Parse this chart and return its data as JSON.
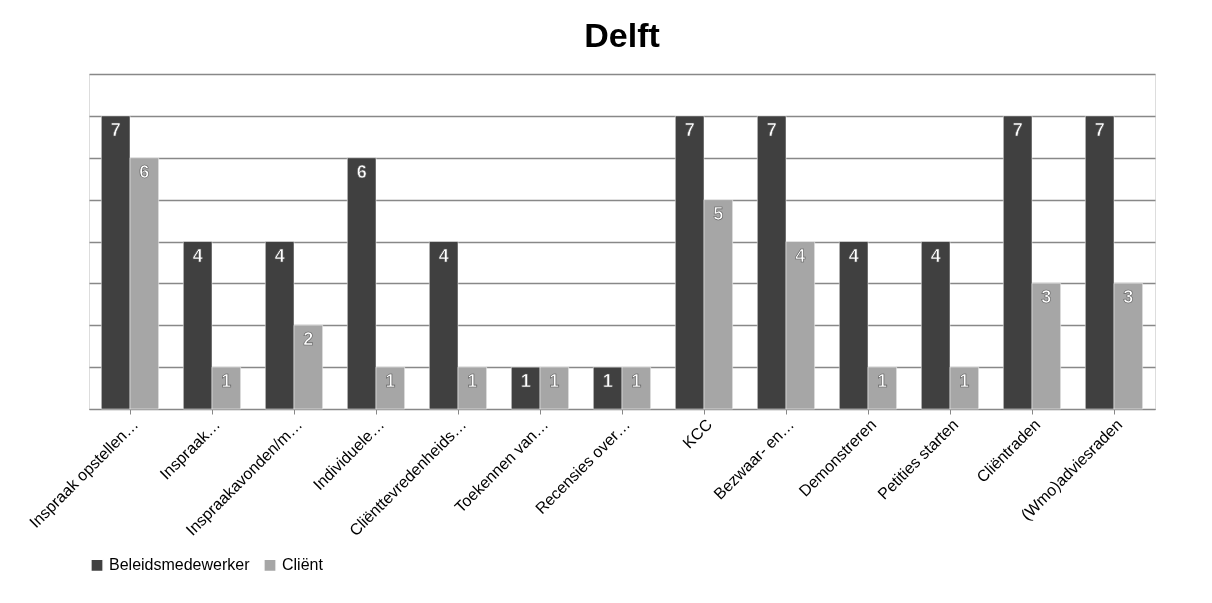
{
  "chart_data": {
    "type": "bar",
    "title": "Delft",
    "categories": [
      "Inspraak opstellen…",
      "Inspraak…",
      "Inspraakavonden/m…",
      "Individuele…",
      "Cliënttevredenheids…",
      "Toekennen van…",
      "Recensies over…",
      "KCC",
      "Bezwaar- en…",
      "Demonstreren",
      "Petities starten",
      "Cliëntraden",
      "(Wmo)adviesraden"
    ],
    "series": [
      {
        "name": "Beleidsmedewerker",
        "color": "#404040",
        "values": [
          7,
          4,
          4,
          6,
          4,
          1,
          1,
          7,
          7,
          4,
          4,
          7,
          7
        ]
      },
      {
        "name": "Cliënt",
        "color": "#a6a6a6",
        "values": [
          6,
          1,
          2,
          1,
          1,
          1,
          1,
          5,
          4,
          1,
          1,
          3,
          3
        ]
      }
    ],
    "ylim": [
      0,
      8
    ],
    "yticks": [
      {
        "value": 0,
        "label": null
      },
      {
        "value": 1,
        "label": null
      },
      {
        "value": 2,
        "label": null
      },
      {
        "value": 3,
        "label": null
      },
      {
        "value": 4,
        "label": null
      },
      {
        "value": 5,
        "label": null
      },
      {
        "value": 6,
        "label": null
      },
      {
        "value": 7,
        "label": null
      },
      {
        "value": 8,
        "label": null
      }
    ],
    "tick_labels": "x",
    "grid": "y",
    "legend": "bottom",
    "data_labels": true
  }
}
